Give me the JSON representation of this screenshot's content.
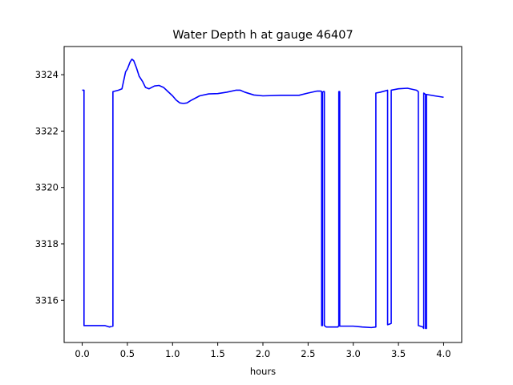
{
  "chart_data": {
    "type": "line",
    "title": "Water Depth h at gauge 46407",
    "xlabel": "hours",
    "ylabel": "",
    "xlim": [
      -0.2,
      4.2
    ],
    "ylim": [
      3314.5,
      3325.0
    ],
    "xticks": [
      0.0,
      0.5,
      1.0,
      1.5,
      2.0,
      2.5,
      3.0,
      3.5,
      4.0
    ],
    "xtick_labels": [
      "0.0",
      "0.5",
      "1.0",
      "1.5",
      "2.0",
      "2.5",
      "3.0",
      "3.5",
      "4.0"
    ],
    "yticks": [
      3316,
      3318,
      3320,
      3322,
      3324
    ],
    "ytick_labels": [
      "3316",
      "3318",
      "3320",
      "3322",
      "3324"
    ],
    "grid": false,
    "series": [
      {
        "color": "#0000ff",
        "x": [
          0.0,
          0.02,
          0.02,
          0.05,
          0.1,
          0.15,
          0.2,
          0.25,
          0.3,
          0.34,
          0.34,
          0.4,
          0.44,
          0.46,
          0.48,
          0.5,
          0.53,
          0.55,
          0.57,
          0.6,
          0.63,
          0.67,
          0.7,
          0.74,
          0.8,
          0.85,
          0.9,
          0.95,
          1.0,
          1.04,
          1.08,
          1.12,
          1.16,
          1.2,
          1.3,
          1.4,
          1.5,
          1.6,
          1.7,
          1.75,
          1.8,
          1.9,
          2.0,
          2.2,
          2.4,
          2.5,
          2.6,
          2.64,
          2.65,
          2.65,
          2.66,
          2.66,
          2.67,
          2.68,
          2.68,
          2.7,
          2.7,
          2.8,
          2.83,
          2.84,
          2.84,
          2.85,
          2.85,
          2.86,
          3.0,
          3.1,
          3.2,
          3.25,
          3.25,
          3.3,
          3.38,
          3.38,
          3.4,
          3.42,
          3.42,
          3.5,
          3.6,
          3.7,
          3.72,
          3.72,
          3.77,
          3.78,
          3.78,
          3.8,
          3.8,
          3.81,
          3.81,
          3.9,
          4.0
        ],
        "y": [
          3323.45,
          3323.45,
          3315.1,
          3315.1,
          3315.1,
          3315.1,
          3315.1,
          3315.1,
          3315.05,
          3315.08,
          3323.4,
          3323.45,
          3323.5,
          3323.8,
          3324.1,
          3324.2,
          3324.45,
          3324.55,
          3324.5,
          3324.25,
          3323.95,
          3323.75,
          3323.55,
          3323.5,
          3323.6,
          3323.62,
          3323.55,
          3323.4,
          3323.25,
          3323.1,
          3323.0,
          3322.98,
          3323.0,
          3323.08,
          3323.25,
          3323.32,
          3323.33,
          3323.38,
          3323.45,
          3323.45,
          3323.38,
          3323.28,
          3323.25,
          3323.27,
          3323.27,
          3323.35,
          3323.42,
          3323.42,
          3323.4,
          3315.1,
          3315.1,
          3323.38,
          3323.4,
          3323.4,
          3315.1,
          3315.05,
          3315.05,
          3315.05,
          3315.05,
          3315.1,
          3323.4,
          3323.4,
          3315.08,
          3315.08,
          3315.08,
          3315.05,
          3315.03,
          3315.05,
          3323.35,
          3323.38,
          3323.45,
          3315.13,
          3315.15,
          3315.18,
          3323.45,
          3323.5,
          3323.52,
          3323.45,
          3323.4,
          3315.1,
          3315.05,
          3315.0,
          3323.35,
          3323.3,
          3315.0,
          3315.0,
          3323.3,
          3323.25,
          3323.2
        ]
      }
    ]
  }
}
